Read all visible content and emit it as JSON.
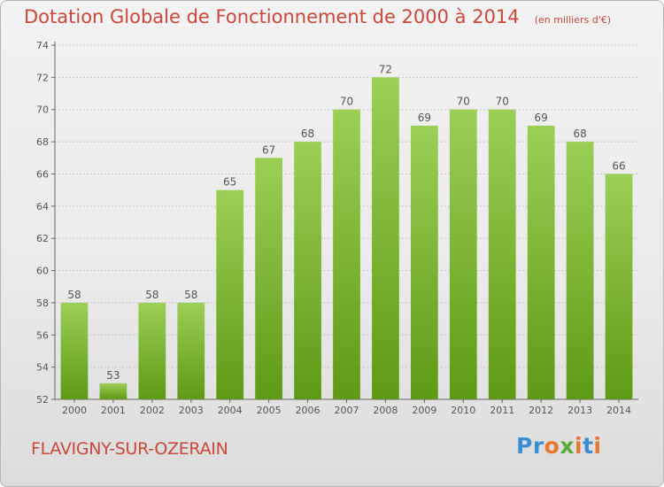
{
  "header": {
    "title": "Dotation Globale de Fonctionnement de 2000 à 2014",
    "subtitle": "(en milliers d'€)"
  },
  "footer": {
    "commune": "FLAVIGNY-SUR-OZERAIN",
    "logo_text": "Proxiti",
    "logo_colors": [
      "#3a8fd4",
      "#3a8fd4",
      "#e8762c",
      "#5aab3a",
      "#e8762c",
      "#3a8fd4",
      "#e8762c"
    ]
  },
  "colors": {
    "bar_top": "#9ccf55",
    "bar_bottom": "#5e9a16",
    "title": "#c9483b",
    "axis_text": "#555555",
    "gridline": "#c8c8c8"
  },
  "chart_data": {
    "type": "bar",
    "title": "Dotation Globale de Fonctionnement de 2000 à 2014",
    "subtitle": "(en milliers d'€)",
    "categories": [
      "2000",
      "2001",
      "2002",
      "2003",
      "2004",
      "2005",
      "2006",
      "2007",
      "2008",
      "2009",
      "2010",
      "2011",
      "2012",
      "2013",
      "2014"
    ],
    "values": [
      58,
      53,
      58,
      58,
      65,
      67,
      68,
      70,
      72,
      69,
      70,
      70,
      69,
      68,
      66
    ],
    "ylim": [
      52,
      74
    ],
    "yticks": [
      52,
      54,
      56,
      58,
      60,
      62,
      64,
      66,
      68,
      70,
      72,
      74
    ],
    "grid": true,
    "xlabel": "",
    "ylabel": ""
  }
}
